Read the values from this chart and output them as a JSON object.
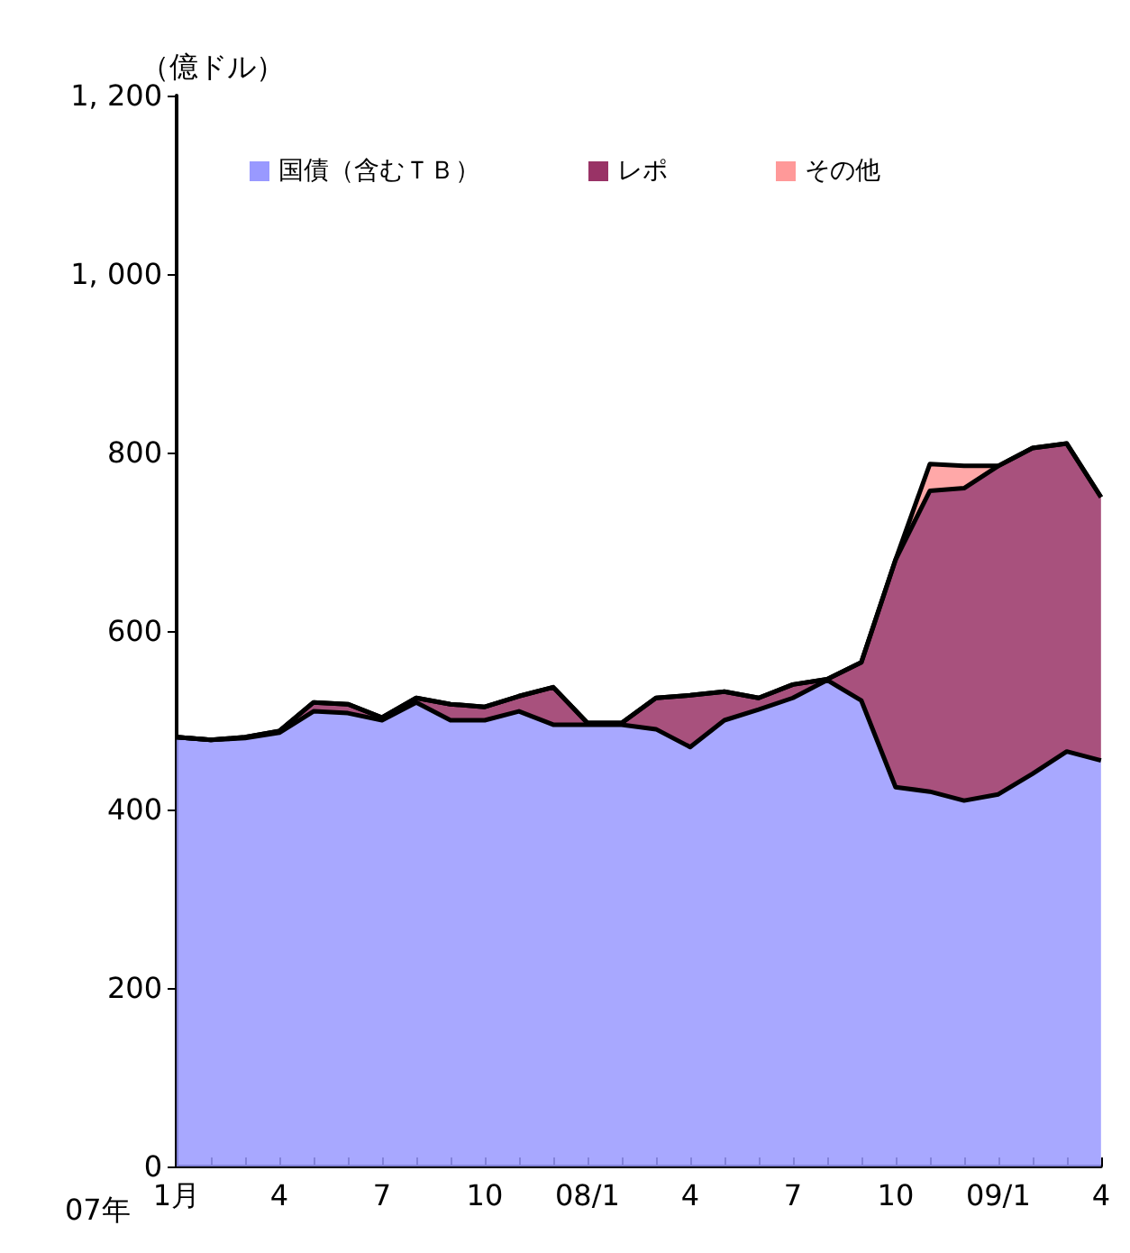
{
  "chart_data": {
    "type": "area",
    "stacked": true,
    "ylabel": "（億ドル）",
    "annotations": [
      "07年"
    ],
    "categories": [
      "1月",
      null,
      null,
      "4",
      null,
      null,
      "7",
      null,
      null,
      "10",
      null,
      null,
      "08/1",
      null,
      null,
      "4",
      null,
      null,
      "7",
      null,
      null,
      "10",
      null,
      null,
      "09/1",
      null,
      null,
      "4"
    ],
    "series": [
      {
        "name": "国債（含むＴＢ）",
        "color": "#9999ff",
        "values": [
          481,
          478,
          480,
          486,
          510,
          508,
          500,
          520,
          500,
          500,
          510,
          495,
          495,
          495,
          490,
          470,
          500,
          512,
          525,
          545,
          522,
          425,
          420,
          410,
          417,
          440,
          465,
          455
        ]
      },
      {
        "name": "レポ",
        "color": "#993366",
        "values": [
          0,
          0,
          1,
          2,
          10,
          10,
          3,
          5,
          18,
          15,
          17,
          42,
          2,
          2,
          35,
          58,
          32,
          13,
          15,
          1,
          43,
          255,
          337,
          350,
          368,
          365,
          345,
          295
        ]
      },
      {
        "name": "その他",
        "color": "#ff9999",
        "values": [
          0,
          0,
          0,
          0,
          0,
          0,
          0,
          0,
          0,
          0,
          0,
          0,
          0,
          0,
          0,
          0,
          0,
          0,
          0,
          0,
          0,
          0,
          30,
          25,
          0,
          0,
          0,
          0
        ]
      }
    ],
    "ylim": [
      0,
      1200
    ],
    "yticks": [
      0,
      200,
      400,
      600,
      800,
      {
        "value": 1000,
        "label": "1, 000"
      },
      {
        "value": 1200,
        "label": "1, 200"
      }
    ],
    "grid": false,
    "legend": "top",
    "line_style": "solid",
    "marker": "none"
  }
}
